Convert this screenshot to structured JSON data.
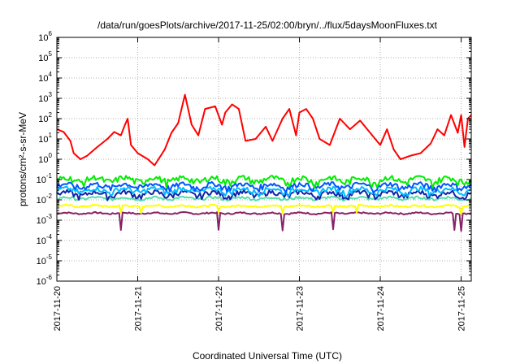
{
  "chart_data": {
    "type": "line",
    "title": "/data/run/goesPlots/archive/2017-11-25/02:00/bryn/../flux/5daysMoonFluxes.txt",
    "xlabel": "Coordinated Universal Time (UTC)",
    "ylabel": "protons/cm²-s-sr-MeV",
    "y_scale": "log",
    "ylim_exponents": [
      -6,
      6
    ],
    "y_ticks": [
      "10^-6",
      "10^-5",
      "10^-4",
      "10^-3",
      "10^-2",
      "10^-1",
      "10^0",
      "10^1",
      "10^2",
      "10^3",
      "10^4",
      "10^5",
      "10^6"
    ],
    "x_range": [
      "2017-11-20",
      "2017-11-25T03:00"
    ],
    "x_ticks": [
      "2017-11-20",
      "2017-11-21",
      "2017-11-22",
      "2017-11-23",
      "2017-11-24",
      "2017-11-25"
    ],
    "grid": true,
    "series": [
      {
        "color": "#ff0000",
        "points": [
          [
            "2017-11-20T00:00",
            30
          ],
          [
            "2017-11-20T02:00",
            22
          ],
          [
            "2017-11-20T04:00",
            8
          ],
          [
            "2017-11-20T05:00",
            2
          ],
          [
            "2017-11-20T07:00",
            1
          ],
          [
            "2017-11-20T09:00",
            1.5
          ],
          [
            "2017-11-20T12:00",
            4
          ],
          [
            "2017-11-20T15:00",
            10
          ],
          [
            "2017-11-20T17:00",
            22
          ],
          [
            "2017-11-20T19:00",
            15
          ],
          [
            "2017-11-20T20:00",
            40
          ],
          [
            "2017-11-20T21:00",
            100
          ],
          [
            "2017-11-20T22:00",
            5
          ],
          [
            "2017-11-21T00:00",
            2
          ],
          [
            "2017-11-21T03:00",
            1
          ],
          [
            "2017-11-21T05:00",
            0.5
          ],
          [
            "2017-11-21T08:00",
            3
          ],
          [
            "2017-11-21T10:00",
            20
          ],
          [
            "2017-11-21T12:00",
            60
          ],
          [
            "2017-11-21T14:00",
            1500
          ],
          [
            "2017-11-21T16:00",
            50
          ],
          [
            "2017-11-21T18:00",
            15
          ],
          [
            "2017-11-21T20:00",
            300
          ],
          [
            "2017-11-21T23:00",
            400
          ],
          [
            "2017-11-22T01:00",
            50
          ],
          [
            "2017-11-22T02:00",
            200
          ],
          [
            "2017-11-22T04:00",
            500
          ],
          [
            "2017-11-22T06:00",
            300
          ],
          [
            "2017-11-22T08:00",
            8
          ],
          [
            "2017-11-22T11:00",
            10
          ],
          [
            "2017-11-22T14:00",
            40
          ],
          [
            "2017-11-22T16:00",
            8
          ],
          [
            "2017-11-22T19:00",
            100
          ],
          [
            "2017-11-22T21:00",
            300
          ],
          [
            "2017-11-22T23:00",
            15
          ],
          [
            "2017-11-23T00:00",
            200
          ],
          [
            "2017-11-23T02:00",
            300
          ],
          [
            "2017-11-23T04:00",
            100
          ],
          [
            "2017-11-23T06:00",
            10
          ],
          [
            "2017-11-23T09:00",
            5
          ],
          [
            "2017-11-23T12:00",
            100
          ],
          [
            "2017-11-23T15:00",
            30
          ],
          [
            "2017-11-23T18:00",
            80
          ],
          [
            "2017-11-23T21:00",
            20
          ],
          [
            "2017-11-24T00:00",
            5
          ],
          [
            "2017-11-24T02:00",
            30
          ],
          [
            "2017-11-24T04:00",
            3
          ],
          [
            "2017-11-24T06:00",
            1
          ],
          [
            "2017-11-24T09:00",
            1.5
          ],
          [
            "2017-11-24T12:00",
            2
          ],
          [
            "2017-11-24T15:00",
            6
          ],
          [
            "2017-11-24T17:00",
            30
          ],
          [
            "2017-11-24T19:00",
            15
          ],
          [
            "2017-11-24T21:00",
            150
          ],
          [
            "2017-11-24T23:00",
            20
          ],
          [
            "2017-11-25T00:00",
            150
          ],
          [
            "2017-11-25T01:00",
            4
          ],
          [
            "2017-11-25T02:00",
            100
          ],
          [
            "2017-11-25T03:00",
            150
          ]
        ]
      },
      {
        "color": "#00ee00",
        "level": 0.1,
        "variation": 0.35,
        "dips": [],
        "dip_depth": 1
      },
      {
        "color": "#0055ff",
        "level": 0.05,
        "variation": 0.3,
        "dips": [],
        "dip_depth": 1
      },
      {
        "color": "#00bbff",
        "level": 0.03,
        "variation": 0.3,
        "dips": [],
        "dip_depth": 1
      },
      {
        "color": "#1122aa",
        "level": 0.02,
        "variation": 0.3,
        "dips": [],
        "dip_depth": 1
      },
      {
        "color": "#55ddaa",
        "level": 0.012,
        "variation": 0.15,
        "dips": [],
        "dip_depth": 1
      },
      {
        "color": "#ffff00",
        "level": 0.005,
        "variation": 0.1,
        "dips": [
          "2017-11-20T19:00",
          "2017-11-21T01:00",
          "2017-11-22T00:00",
          "2017-11-22T19:00",
          "2017-11-23T10:00",
          "2017-11-23T17:00",
          "2017-11-25T00:00"
        ],
        "dip_depth": 0.45
      },
      {
        "color": "#882266",
        "level": 0.0022,
        "variation": 0.08,
        "dips": [
          "2017-11-20T19:00",
          "2017-11-22T00:00",
          "2017-11-22T19:00",
          "2017-11-23T10:00",
          "2017-11-24T22:00",
          "2017-11-25T00:00"
        ],
        "dip_depth": 0.15
      }
    ]
  }
}
